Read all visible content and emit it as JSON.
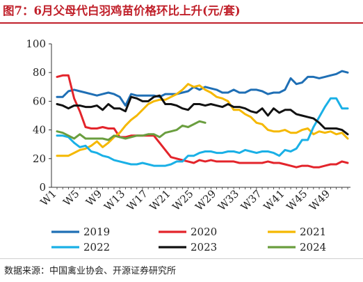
{
  "figure": {
    "title": "图7：6月父母代白羽鸡苗价格环比上升(元/套)",
    "source": "数据来源：中国禽业协会、开源证券研究所"
  },
  "chart_data": {
    "type": "line",
    "x": [
      "W1",
      "W2",
      "W3",
      "W4",
      "W5",
      "W6",
      "W7",
      "W8",
      "W9",
      "W10",
      "W11",
      "W12",
      "W13",
      "W14",
      "W15",
      "W16",
      "W17",
      "W18",
      "W19",
      "W20",
      "W21",
      "W22",
      "W23",
      "W24",
      "W25",
      "W26",
      "W27",
      "W28",
      "W29",
      "W30",
      "W31",
      "W32",
      "W33",
      "W34",
      "W35",
      "W36",
      "W37",
      "W38",
      "W39",
      "W40",
      "W41",
      "W42",
      "W43",
      "W44",
      "W45",
      "W46",
      "W47",
      "W48",
      "W49",
      "W50",
      "W51",
      "W52"
    ],
    "x_tick_labels": [
      "W1",
      "W5",
      "W9",
      "W13",
      "W17",
      "W21",
      "W25",
      "W29",
      "W33",
      "W37",
      "W41",
      "W45",
      "W49"
    ],
    "ylim": [
      0,
      100
    ],
    "y_ticks": [
      0,
      20,
      40,
      60,
      80,
      100
    ],
    "grid": false,
    "legend": "bottom",
    "series": [
      {
        "name": "2019",
        "color": "#1f6fb5",
        "values": [
          63,
          63,
          67,
          68,
          67,
          66,
          65,
          64,
          65,
          66,
          65,
          63,
          57,
          65,
          64,
          64,
          64,
          64,
          63,
          65,
          65,
          65,
          66,
          67,
          70,
          68,
          70,
          69,
          68,
          66,
          66,
          68,
          66,
          66,
          68,
          68,
          67,
          65,
          66,
          66,
          68,
          76,
          72,
          73,
          77,
          77,
          76,
          77,
          78,
          79,
          81,
          80
        ]
      },
      {
        "name": "2020",
        "color": "#e3242b",
        "values": [
          77,
          78,
          78,
          62,
          53,
          42,
          41,
          41,
          42,
          41,
          41,
          35,
          35,
          36,
          36,
          36,
          36,
          36,
          31,
          26,
          21,
          20,
          19,
          18,
          17,
          19,
          18,
          19,
          18,
          18,
          18,
          18,
          17,
          17,
          17,
          17,
          17,
          18,
          17,
          17,
          16,
          15,
          14,
          15,
          15,
          14,
          14,
          15,
          16,
          16,
          18,
          17
        ]
      },
      {
        "name": "2021",
        "color": "#f5b800",
        "values": [
          22,
          22,
          22,
          24,
          26,
          27,
          29,
          32,
          28,
          31,
          35,
          38,
          43,
          47,
          50,
          54,
          58,
          60,
          61,
          61,
          63,
          65,
          68,
          72,
          70,
          71,
          68,
          66,
          63,
          62,
          60,
          54,
          54,
          51,
          49,
          45,
          44,
          40,
          39,
          39,
          40,
          38,
          38,
          40,
          41,
          37,
          39,
          38,
          39,
          37,
          38,
          34
        ]
      },
      {
        "name": "2022",
        "color": "#1ab0e6",
        "values": [
          36,
          36,
          35,
          31,
          28,
          29,
          25,
          24,
          22,
          21,
          19,
          18,
          17,
          16,
          16,
          17,
          16,
          15,
          15,
          15,
          16,
          18,
          18,
          22,
          22,
          24,
          25,
          25,
          24,
          24,
          25,
          25,
          24,
          26,
          25,
          24,
          25,
          25,
          24,
          22,
          26,
          25,
          27,
          33,
          33,
          42,
          49,
          56,
          62,
          62,
          55,
          55
        ]
      },
      {
        "name": "2023",
        "color": "#111111",
        "values": [
          58,
          57,
          55,
          57,
          57,
          56,
          56,
          57,
          54,
          58,
          55,
          55,
          53,
          63,
          62,
          60,
          60,
          63,
          64,
          58,
          58,
          57,
          55,
          54,
          58,
          58,
          57,
          58,
          57,
          56,
          58,
          56,
          56,
          55,
          53,
          52,
          55,
          50,
          55,
          52,
          54,
          54,
          51,
          50,
          49,
          48,
          45,
          41,
          41,
          41,
          40,
          37
        ]
      },
      {
        "name": "2024",
        "color": "#6a9e3f",
        "values": [
          39,
          38,
          36,
          34,
          37,
          34,
          34,
          34,
          34,
          33,
          36,
          35,
          34,
          35,
          36,
          36,
          37,
          37,
          35,
          38,
          39,
          40,
          43,
          42,
          44,
          46,
          45,
          null,
          null,
          null,
          null,
          null,
          null,
          null,
          null,
          null,
          null,
          null,
          null,
          null,
          null,
          null,
          null,
          null,
          null,
          null,
          null,
          null,
          null,
          null,
          null,
          null
        ]
      }
    ]
  }
}
